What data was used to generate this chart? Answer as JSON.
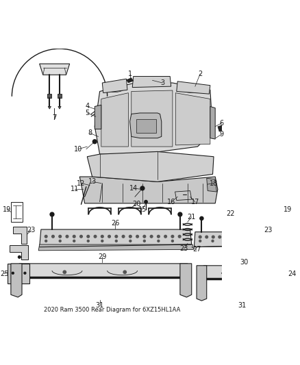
{
  "title": "2020 Ram 3500 Rear Diagram for 6XZ15HL1AA",
  "bg_color": "#ffffff",
  "fig_width": 4.38,
  "fig_height": 5.33,
  "dpi": 100,
  "font_size": 7.0,
  "text_color": "#1a1a1a",
  "line_color": "#1a1a1a"
}
